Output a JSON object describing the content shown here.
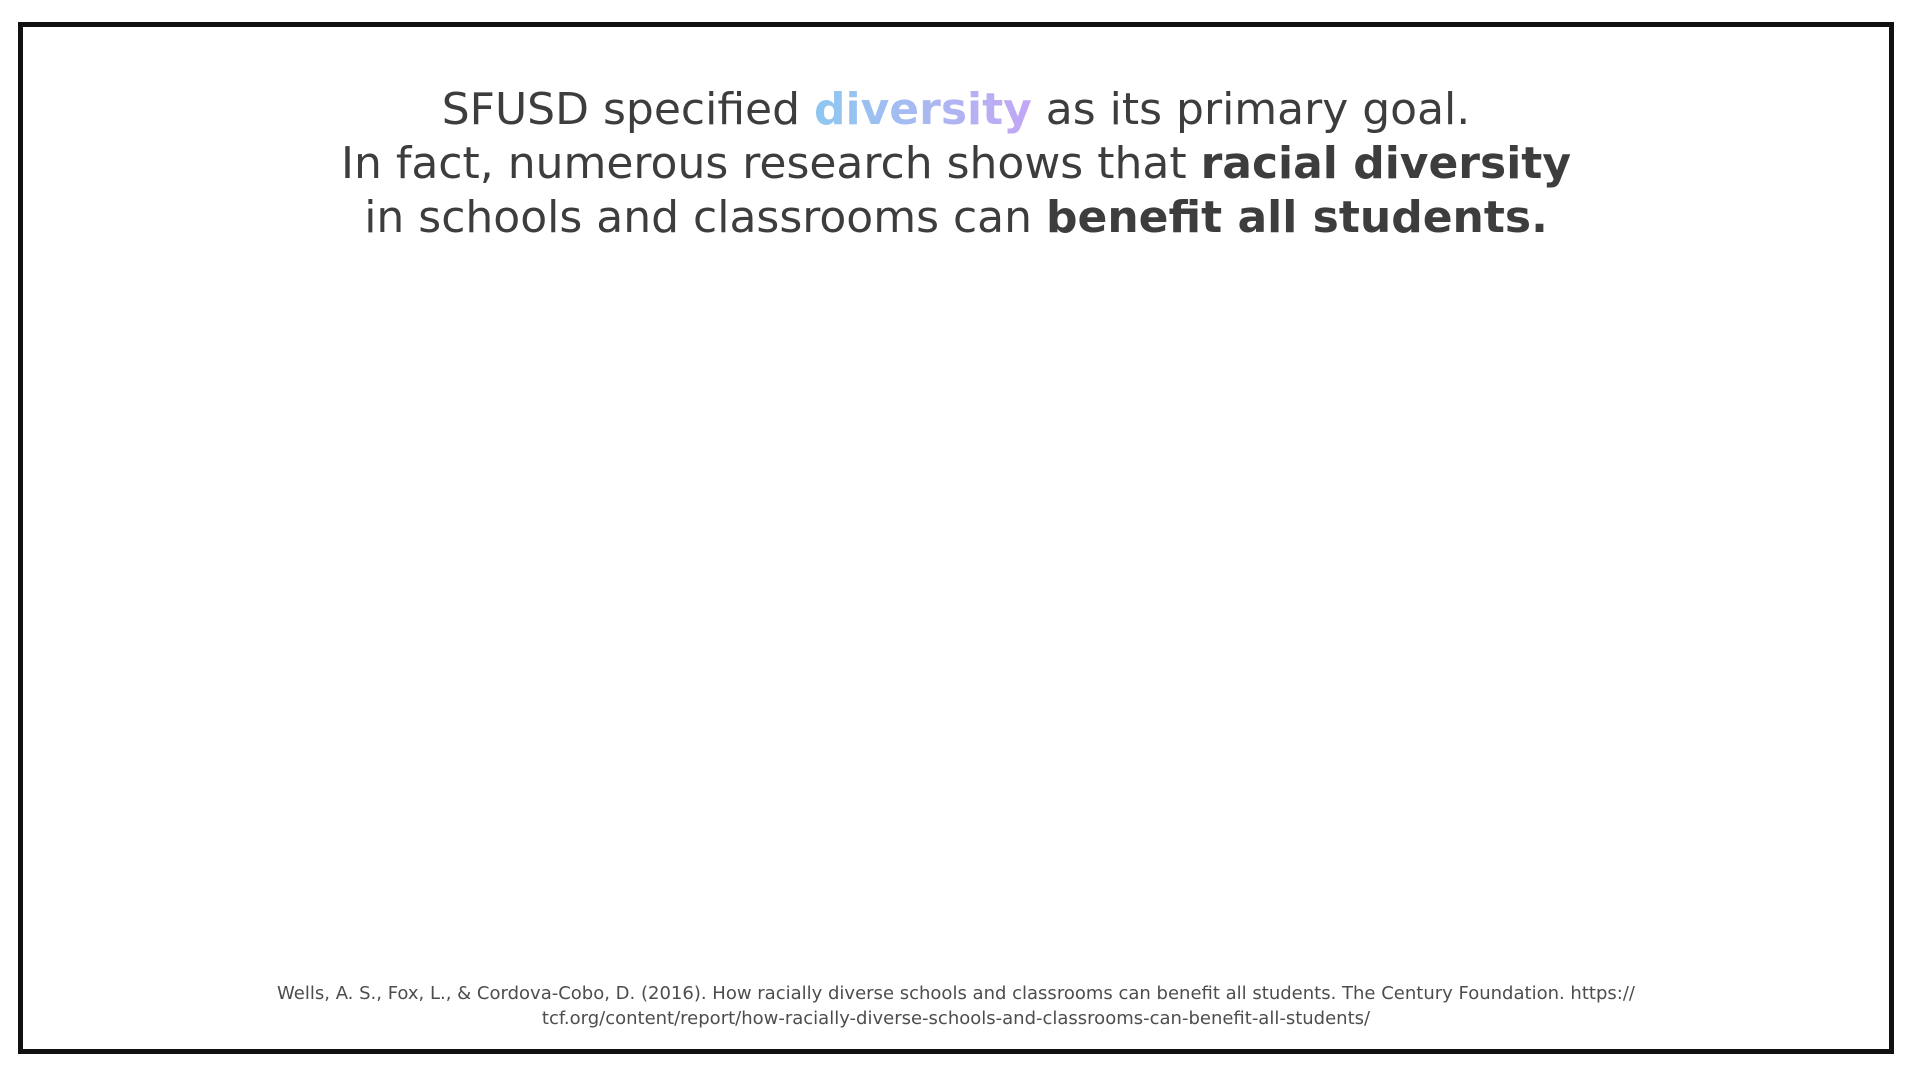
{
  "headline": {
    "line1": {
      "before": "SFUSD specified ",
      "highlight": "diversity",
      "after": " as its primary goal."
    },
    "line2": {
      "before": "In fact, numerous research shows that ",
      "bold": "racial diversity"
    },
    "line3": {
      "before": "in schools and classrooms can ",
      "bold": "benefit all students."
    }
  },
  "citation": {
    "line1": "Wells, A. S., Fox, L., & Cordova-Cobo, D. (2016). How racially diverse schools and classrooms can benefit all students. The Century Foundation. https://",
    "line2": "tcf.org/content/report/how-racially-diverse-schools-and-classrooms-can-benefit-all-students/"
  },
  "colors": {
    "text": "#3d3d3d",
    "gradient_start": "#8ec7ef",
    "gradient_end": "#c3a6f5",
    "border": "#111111",
    "citation_text": "#4d4d4d"
  }
}
